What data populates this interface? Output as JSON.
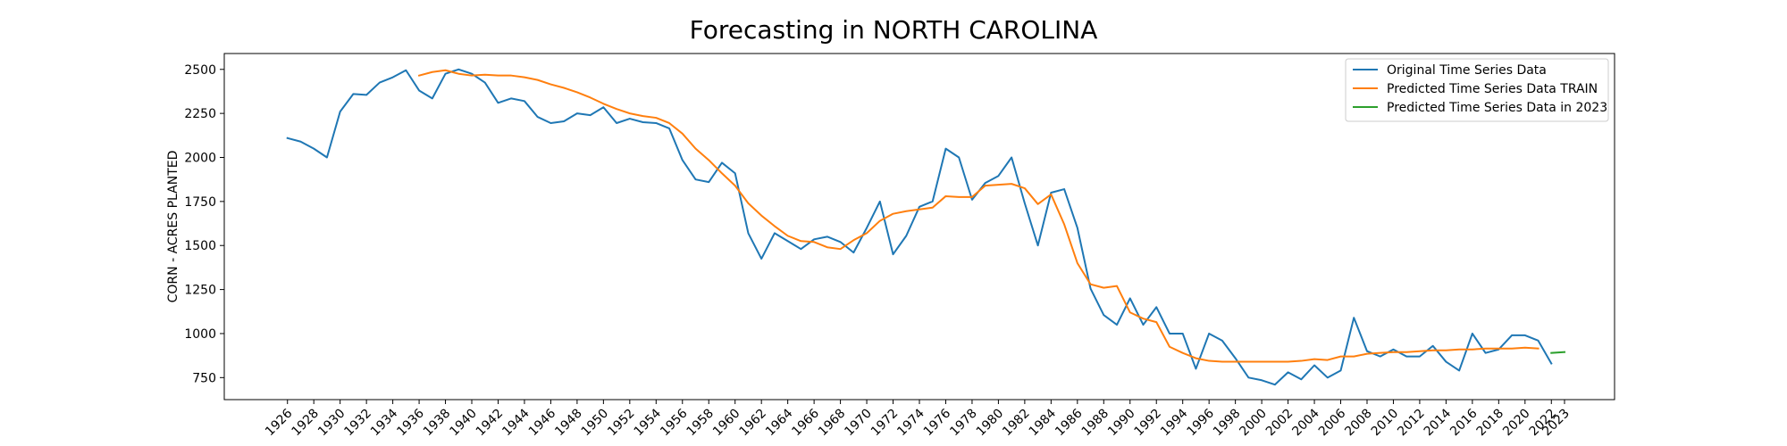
{
  "chart_data": {
    "type": "line",
    "title": "Forecasting in NORTH CAROLINA",
    "xlabel": "",
    "ylabel": "CORN - ACRES PLANTED",
    "xlim": [
      1921.2,
      2026.8
    ],
    "ylim": [
      625,
      2590
    ],
    "xticks": [
      1926,
      1928,
      1930,
      1932,
      1934,
      1936,
      1938,
      1940,
      1942,
      1944,
      1946,
      1948,
      1950,
      1952,
      1954,
      1956,
      1958,
      1960,
      1962,
      1964,
      1966,
      1968,
      1970,
      1972,
      1974,
      1976,
      1978,
      1980,
      1982,
      1984,
      1986,
      1988,
      1990,
      1992,
      1994,
      1996,
      1998,
      2000,
      2002,
      2004,
      2006,
      2008,
      2010,
      2012,
      2014,
      2016,
      2018,
      2020,
      2022,
      2023
    ],
    "yticks": [
      750,
      1000,
      1250,
      1500,
      1750,
      2000,
      2250,
      2500
    ],
    "grid": false,
    "legend_position": "top-right",
    "series": [
      {
        "name": "Original Time Series Data",
        "color": "#1f77b4",
        "x": [
          1926,
          1927,
          1928,
          1929,
          1930,
          1931,
          1932,
          1933,
          1934,
          1935,
          1936,
          1937,
          1938,
          1939,
          1940,
          1941,
          1942,
          1943,
          1944,
          1945,
          1946,
          1947,
          1948,
          1949,
          1950,
          1951,
          1952,
          1953,
          1954,
          1955,
          1956,
          1957,
          1958,
          1959,
          1960,
          1961,
          1962,
          1963,
          1964,
          1965,
          1966,
          1967,
          1968,
          1969,
          1970,
          1971,
          1972,
          1973,
          1974,
          1975,
          1976,
          1977,
          1978,
          1979,
          1980,
          1981,
          1982,
          1983,
          1984,
          1985,
          1986,
          1987,
          1988,
          1989,
          1990,
          1991,
          1992,
          1993,
          1994,
          1995,
          1996,
          1997,
          1998,
          1999,
          2000,
          2001,
          2002,
          2003,
          2004,
          2005,
          2006,
          2007,
          2008,
          2009,
          2010,
          2011,
          2012,
          2013,
          2014,
          2015,
          2016,
          2017,
          2018,
          2019,
          2020,
          2021,
          2022
        ],
        "y": [
          2110,
          2090,
          2050,
          2000,
          2260,
          2360,
          2355,
          2425,
          2455,
          2495,
          2380,
          2335,
          2475,
          2500,
          2475,
          2425,
          2310,
          2335,
          2320,
          2230,
          2195,
          2205,
          2250,
          2240,
          2285,
          2195,
          2220,
          2200,
          2195,
          2165,
          1985,
          1875,
          1860,
          1970,
          1910,
          1570,
          1425,
          1570,
          1525,
          1480,
          1535,
          1550,
          1520,
          1460,
          1600,
          1750,
          1450,
          1555,
          1720,
          1750,
          2050,
          2000,
          1760,
          1855,
          1895,
          2000,
          1740,
          1500,
          1800,
          1820,
          1600,
          1255,
          1105,
          1050,
          1200,
          1050,
          1150,
          1000,
          1000,
          800,
          1000,
          960,
          860,
          750,
          735,
          710,
          780,
          740,
          820,
          750,
          790,
          1090,
          900,
          870,
          910,
          870,
          870,
          930,
          840,
          790,
          1000,
          890,
          910,
          990,
          990,
          960,
          830
        ]
      },
      {
        "name": "Predicted Time Series Data TRAIN",
        "color": "#ff7f0e",
        "x": [
          1936,
          1937,
          1938,
          1939,
          1940,
          1941,
          1942,
          1943,
          1944,
          1945,
          1946,
          1947,
          1948,
          1949,
          1950,
          1951,
          1952,
          1953,
          1954,
          1955,
          1956,
          1957,
          1958,
          1959,
          1960,
          1961,
          1962,
          1963,
          1964,
          1965,
          1966,
          1967,
          1968,
          1969,
          1970,
          1971,
          1972,
          1973,
          1974,
          1975,
          1976,
          1977,
          1978,
          1979,
          1980,
          1981,
          1982,
          1983,
          1984,
          1985,
          1986,
          1987,
          1988,
          1989,
          1990,
          1991,
          1992,
          1993,
          1994,
          1995,
          1996,
          1997,
          1998,
          1999,
          2000,
          2001,
          2002,
          2003,
          2004,
          2005,
          2006,
          2007,
          2008,
          2009,
          2010,
          2011,
          2012,
          2013,
          2014,
          2015,
          2016,
          2017,
          2018,
          2019,
          2020,
          2021
        ],
        "y": [
          2465,
          2485,
          2495,
          2475,
          2465,
          2470,
          2465,
          2465,
          2455,
          2440,
          2415,
          2395,
          2370,
          2340,
          2305,
          2275,
          2250,
          2235,
          2225,
          2195,
          2135,
          2050,
          1985,
          1910,
          1840,
          1740,
          1670,
          1610,
          1555,
          1525,
          1520,
          1490,
          1480,
          1530,
          1570,
          1640,
          1680,
          1695,
          1705,
          1715,
          1780,
          1775,
          1775,
          1840,
          1845,
          1850,
          1825,
          1735,
          1790,
          1620,
          1400,
          1280,
          1260,
          1270,
          1120,
          1085,
          1065,
          925,
          890,
          860,
          845,
          840,
          840,
          840,
          840,
          840,
          840,
          845,
          855,
          850,
          870,
          870,
          885,
          890,
          895,
          895,
          900,
          905,
          905,
          910,
          910,
          915,
          915,
          915,
          920,
          915
        ]
      },
      {
        "name": "Predicted Time Series Data in 2023",
        "color": "#2ca02c",
        "x": [
          2022,
          2023
        ],
        "y": [
          890,
          895
        ]
      }
    ]
  }
}
